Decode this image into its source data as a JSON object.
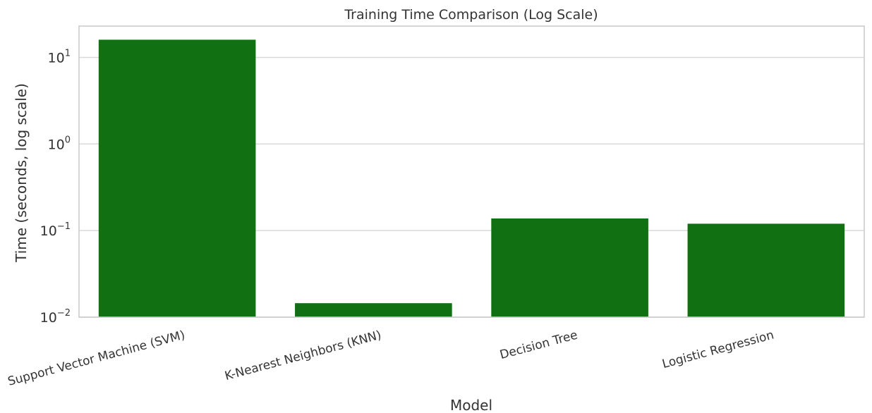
{
  "chart_data": {
    "type": "bar",
    "title": "Training Time Comparison (Log Scale)",
    "xlabel": "Model",
    "ylabel": "Time (seconds, log scale)",
    "yscale": "log",
    "ylim": [
      0.01,
      23
    ],
    "yticks": [
      {
        "value": 0.01,
        "base": "10",
        "exp": "−2"
      },
      {
        "value": 0.1,
        "base": "10",
        "exp": "−1"
      },
      {
        "value": 1,
        "base": "10",
        "exp": "0"
      },
      {
        "value": 10,
        "base": "10",
        "exp": "1"
      }
    ],
    "categories": [
      "Support Vector Machine (SVM)",
      "K-Nearest Neighbors (KNN)",
      "Decision Tree",
      "Logistic Regression"
    ],
    "values": [
      16.0,
      0.0145,
      0.138,
      0.12
    ],
    "bar_color": "#117011",
    "grid": true,
    "xtick_rotation": 15
  }
}
